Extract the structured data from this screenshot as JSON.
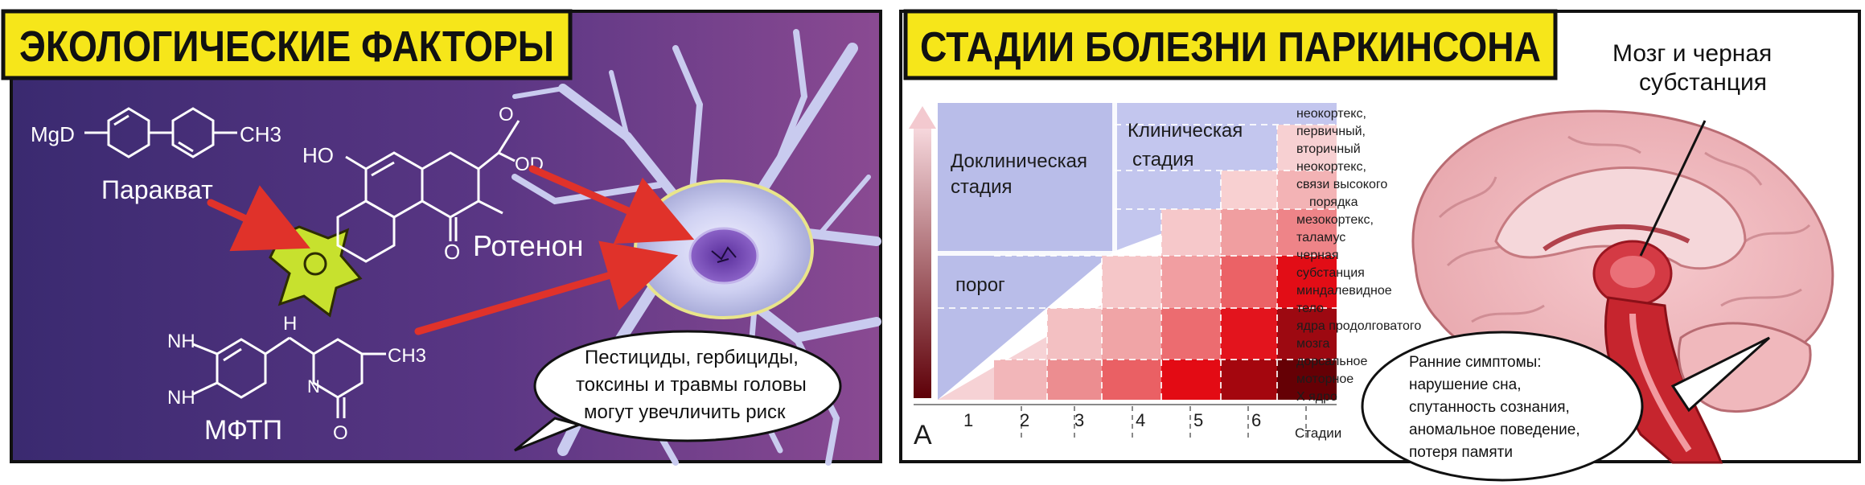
{
  "left_panel": {
    "title": "ЭКОЛОГИЧЕСКИЕ ФАКТОРЫ",
    "paraquat": {
      "name": "Паракват",
      "group_left": "MgD",
      "group_right": "CH3"
    },
    "rotenone": {
      "name": "Ротенон",
      "oh": "HO",
      "od": "OD",
      "o_top": "O",
      "o_bottom": "O"
    },
    "mptp": {
      "name": "МФТП",
      "nh2_top": "NH",
      "nh2_bottom": "NH",
      "h": "H",
      "n": "N",
      "me": "CH3",
      "o": "O"
    },
    "bubble": [
      "Пестициды, гербициды,",
      "токсины и  травмы головы",
      "могут увечличить риск"
    ]
  },
  "right_panel": {
    "title": "СТАДИИ БОЛЕЗНИ ПАРКИНСОНА",
    "brain_label": [
      "Мозг и черная",
      "субстанция"
    ],
    "preclinical": [
      "Доклиническая",
      "стадия"
    ],
    "clinical": [
      "Клиническая",
      "стадия"
    ],
    "threshold": "порог",
    "panel_letter": "A",
    "stages": [
      "1",
      "2",
      "3",
      "4",
      "5",
      "6"
    ],
    "stages_label": "Стадии",
    "regions": [
      "неокортекс,",
      "первичный,",
      "вторичный",
      "неокортекс,",
      "связи высокого",
      "порядка",
      "мезокортекс,",
      "таламус",
      "черная",
      "субстанция",
      "миндалевидное",
      "тело",
      "ядра продолговатого",
      "мозга",
      "дорсальное",
      "моторное",
      "Х ядро"
    ],
    "bubble": [
      "Ранние симптомы:",
      "нарушение сна,",
      "спутанность сознания,",
      "аномальное поведение,",
      "потеря памяти"
    ]
  },
  "colors": {
    "title_bg": "#f6e61a",
    "panel_purple": "#3f2a74",
    "arrow_red": "#e0322a",
    "blue_zone": "#b9bde9",
    "deep_red": "#a8000c"
  }
}
